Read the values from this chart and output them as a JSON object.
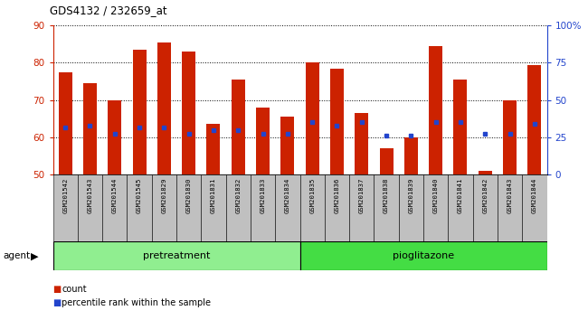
{
  "title": "GDS4132 / 232659_at",
  "samples": [
    "GSM201542",
    "GSM201543",
    "GSM201544",
    "GSM201545",
    "GSM201829",
    "GSM201830",
    "GSM201831",
    "GSM201832",
    "GSM201833",
    "GSM201834",
    "GSM201835",
    "GSM201836",
    "GSM201837",
    "GSM201838",
    "GSM201839",
    "GSM201840",
    "GSM201841",
    "GSM201842",
    "GSM201843",
    "GSM201844"
  ],
  "counts": [
    77.5,
    74.5,
    70.0,
    83.5,
    85.5,
    83.0,
    63.5,
    75.5,
    68.0,
    65.5,
    80.0,
    78.5,
    66.5,
    57.0,
    60.0,
    84.5,
    75.5,
    51.0,
    70.0,
    79.5
  ],
  "percentile": [
    62.5,
    63.0,
    61.0,
    62.5,
    62.5,
    61.0,
    62.0,
    62.0,
    61.0,
    61.0,
    64.0,
    63.0,
    64.0,
    60.5,
    60.5,
    64.0,
    64.0,
    61.0,
    61.0,
    63.5
  ],
  "bar_color": "#cc2200",
  "dot_color": "#2244cc",
  "ylim_left": [
    50,
    90
  ],
  "ylim_right": [
    0,
    100
  ],
  "yticks_left": [
    50,
    60,
    70,
    80,
    90
  ],
  "yticks_right": [
    0,
    25,
    50,
    75,
    100
  ],
  "ytick_labels_right": [
    "0",
    "25",
    "50",
    "75",
    "100%"
  ],
  "pre_n": 10,
  "pio_n": 10,
  "pretreatment_color": "#90ee90",
  "pioglitazone_color": "#44dd44",
  "bg_xtick": "#c0c0c0",
  "bar_width": 0.55
}
